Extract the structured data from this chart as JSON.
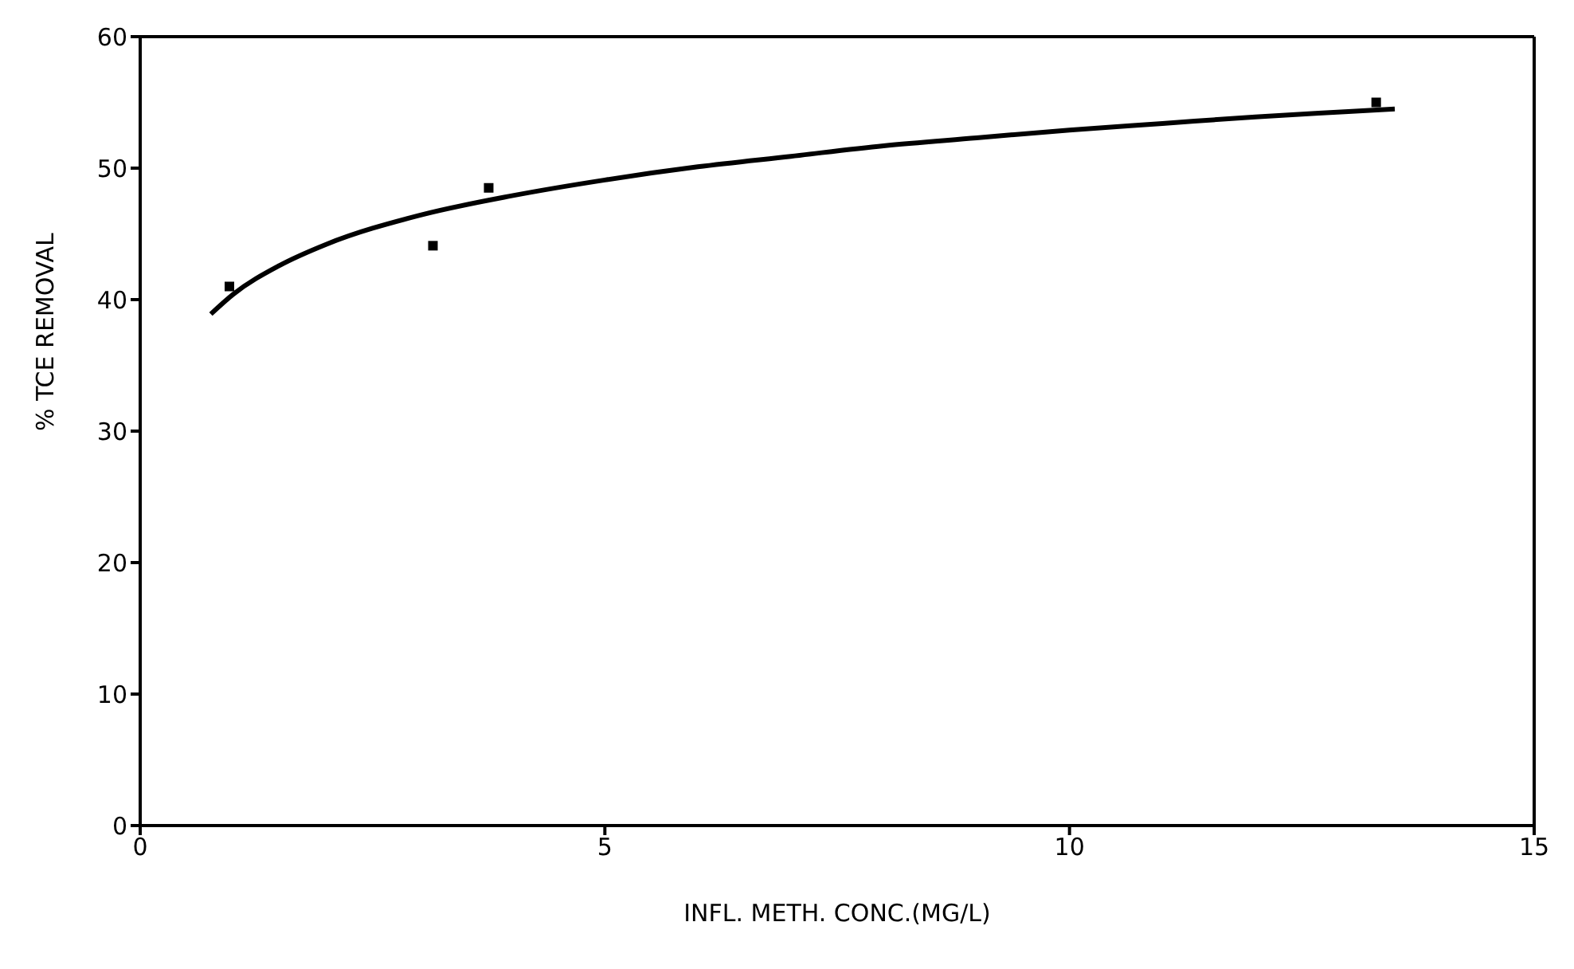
{
  "chart_data": {
    "type": "scatter",
    "xlabel": "INFL. METH. CONC.(MG/L)",
    "ylabel": "% TCE REMOVAL",
    "xlim": [
      0,
      15
    ],
    "xticks": [
      0,
      5,
      10,
      15
    ],
    "ylim": [
      0,
      60
    ],
    "yticks": [
      0,
      10,
      20,
      30,
      40,
      50,
      60
    ],
    "marker": "square",
    "series": [
      {
        "color": "#000000",
        "x": [
          0.96,
          3.15,
          3.75,
          13.3
        ],
        "values": [
          41,
          44.1,
          48.5,
          55
        ]
      },
      {
        "type": "line",
        "color": "#000000",
        "marker": "none",
        "line_style": "solid",
        "x": [
          0.76,
          1,
          1.5,
          2,
          3,
          4,
          5,
          6,
          7,
          8,
          9,
          10,
          11,
          12,
          13,
          13.5
        ],
        "values": [
          38.9,
          40.4,
          42.6,
          44.2,
          46.4,
          47.9,
          49.1,
          50.1,
          50.9,
          51.7,
          52.3,
          52.9,
          53.4,
          53.9,
          54.3,
          54.5
        ]
      }
    ]
  }
}
